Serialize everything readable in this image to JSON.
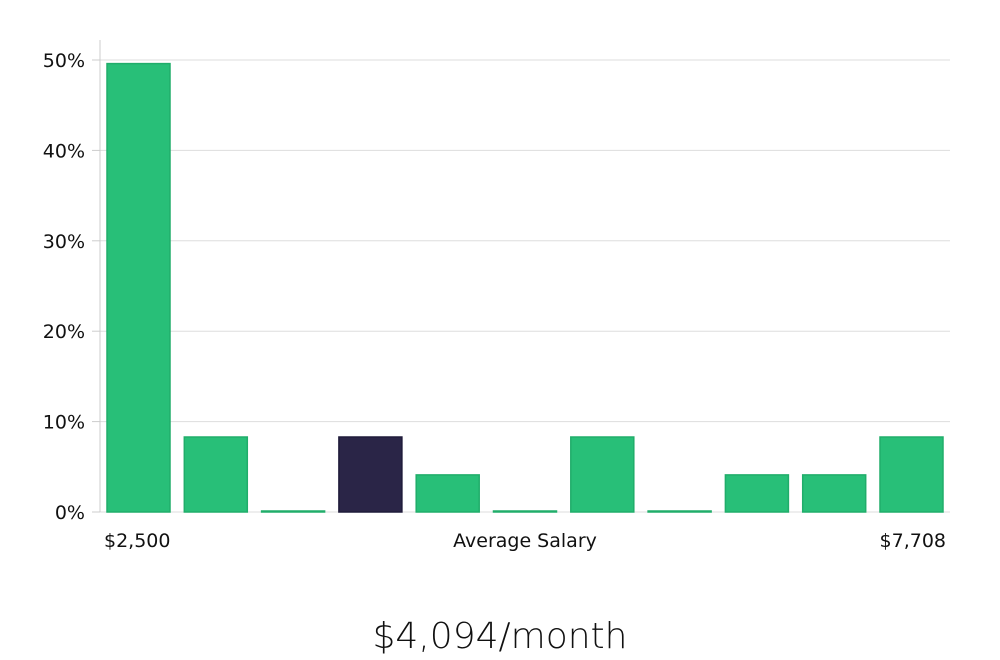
{
  "chart_data": {
    "type": "bar",
    "xlabel": "Average Salary",
    "x_range_labels": {
      "min": "$2,500",
      "max": "$7,708"
    },
    "yticks": [
      "0%",
      "10%",
      "20%",
      "30%",
      "40%",
      "50%"
    ],
    "ylim": [
      0,
      52
    ],
    "values": [
      49.6,
      8.3,
      0.1,
      8.3,
      4.1,
      0.1,
      8.3,
      0.1,
      4.1,
      4.1,
      8.3
    ],
    "highlight_index": 3,
    "grid": true,
    "colors": {
      "bar": "#28bf78",
      "bar_stroke": "#20ad6a",
      "highlight": "#2a2547",
      "grid": "#dddddd",
      "axis": "#cccccc"
    }
  },
  "summary": "$4,094/month"
}
